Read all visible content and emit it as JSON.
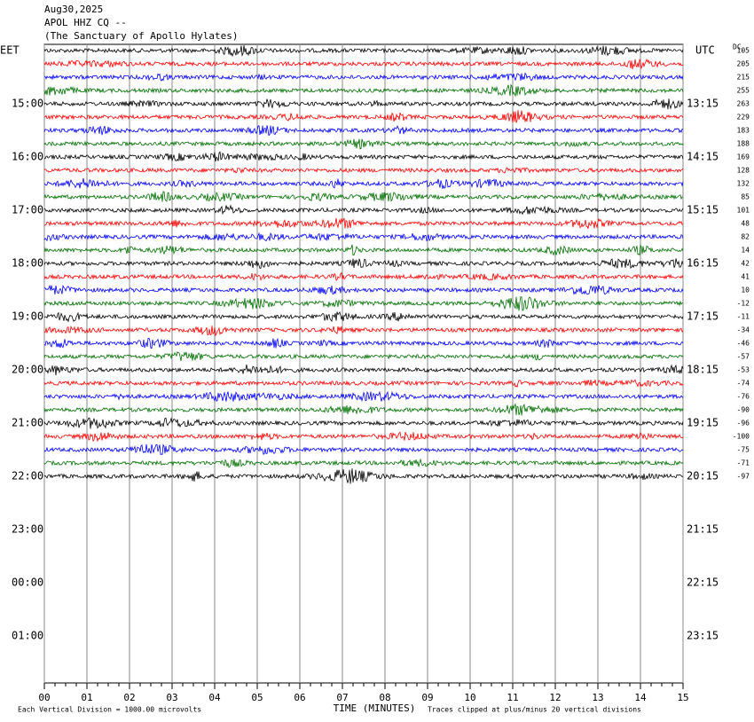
{
  "chart_data": {
    "type": "helicorder",
    "title": "Aug30,2025",
    "subtitle": "APOL HHZ CQ --",
    "station": "(The Sanctuary of Apollo Hylates)",
    "left_label": "EET",
    "right_label": "UTC",
    "offset_label": "DC",
    "xlabel": "TIME (MINUTES)",
    "note_left": "Each Vertical Division = 1000.00 microvolts",
    "note_right": "Traces clipped at plus/minus 20 vertical divisions",
    "xlim": [
      0,
      15
    ],
    "xticks": [
      {
        "value": 0,
        "label": "00"
      },
      {
        "value": 1,
        "label": "01"
      },
      {
        "value": 2,
        "label": "02"
      },
      {
        "value": 3,
        "label": "03"
      },
      {
        "value": 4,
        "label": "04"
      },
      {
        "value": 5,
        "label": "05"
      },
      {
        "value": 6,
        "label": "06"
      },
      {
        "value": 7,
        "label": "07"
      },
      {
        "value": 8,
        "label": "08"
      },
      {
        "value": 9,
        "label": "09"
      },
      {
        "value": 10,
        "label": "10"
      },
      {
        "value": 11,
        "label": "11"
      },
      {
        "value": 12,
        "label": "12"
      },
      {
        "value": 13,
        "label": "13"
      },
      {
        "value": 14,
        "label": "14"
      },
      {
        "value": 15,
        "label": "15"
      }
    ],
    "left_times": [
      "15:00",
      "16:00",
      "17:00",
      "18:00",
      "19:00",
      "20:00",
      "21:00",
      "22:00",
      "23:00",
      "00:00",
      "01:00"
    ],
    "right_times": [
      "13:15",
      "14:15",
      "15:15",
      "16:15",
      "17:15",
      "18:15",
      "19:15",
      "20:15",
      "21:15",
      "22:15",
      "23:15"
    ],
    "colors": [
      "#000000",
      "#ff0000",
      "#0000ff",
      "#007000"
    ],
    "dc_offsets": [
      105,
      205,
      215,
      255,
      263,
      229,
      183,
      188,
      169,
      128,
      132,
      85,
      101,
      48,
      82,
      14,
      42,
      41,
      10,
      -12,
      -11,
      -34,
      -46,
      -57,
      -53,
      -74,
      -76,
      -90,
      -96,
      -100,
      -75,
      -71,
      -97
    ]
  }
}
